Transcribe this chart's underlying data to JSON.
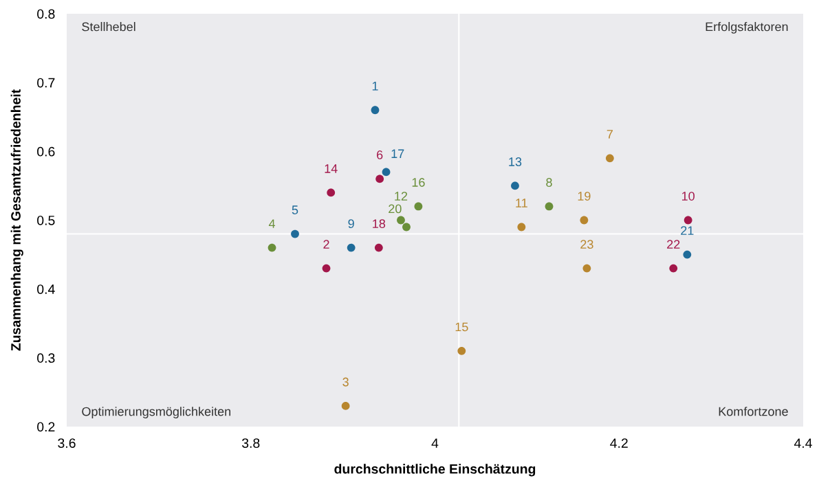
{
  "chart_data": {
    "type": "scatter",
    "xlabel": "durchschnittliche Einschätzung",
    "ylabel": "Zusammenhang mit Gesamtzufriedenheit",
    "xlim": [
      3.6,
      4.4
    ],
    "xticks": [
      3.6,
      3.8,
      4,
      4.2,
      4.4
    ],
    "ylim": [
      0.2,
      0.8
    ],
    "yticks": [
      0.2,
      0.3,
      0.4,
      0.5,
      0.6,
      0.7,
      0.8
    ],
    "grid": false,
    "marker": "circle",
    "series": [
      {
        "color": "#1f6b99",
        "x": [
          3.935,
          3.848,
          3.909,
          4.087,
          3.947,
          4.274
        ],
        "values": [
          0.66,
          0.48,
          0.46,
          0.55,
          0.57,
          0.45
        ]
      },
      {
        "color": "#a3174a",
        "x": [
          3.882,
          3.94,
          4.275,
          3.887,
          3.939,
          4.259
        ],
        "values": [
          0.43,
          0.56,
          0.5,
          0.54,
          0.46,
          0.43
        ]
      },
      {
        "color": "#b8862e",
        "x": [
          3.903,
          4.19,
          4.094,
          4.029,
          4.162,
          4.165
        ],
        "values": [
          0.23,
          0.59,
          0.49,
          0.31,
          0.5,
          0.43
        ]
      },
      {
        "color": "#6a8f3a",
        "x": [
          3.823,
          4.124,
          3.963,
          3.982,
          3.969
        ],
        "values": [
          0.46,
          0.52,
          0.5,
          0.52,
          0.49
        ]
      }
    ],
    "ref_lines": [
      {
        "axis": "x",
        "value": 4.026,
        "color": "#ffffff"
      },
      {
        "axis": "y",
        "value": 0.48,
        "color": "#ffffff"
      }
    ],
    "annotations": [
      "Stellhebel",
      "Erfolgsfaktoren",
      "Optimierungsmöglichkeiten",
      "Komfortzone",
      {
        "text": "1",
        "x": 3.935,
        "y": 0.66
      },
      {
        "text": "2",
        "x": 3.882,
        "y": 0.43
      },
      {
        "text": "3",
        "x": 3.903,
        "y": 0.23
      },
      {
        "text": "4",
        "x": 3.823,
        "y": 0.46
      },
      {
        "text": "5",
        "x": 3.848,
        "y": 0.48
      },
      {
        "text": "6",
        "x": 3.94,
        "y": 0.56
      },
      {
        "text": "7",
        "x": 4.19,
        "y": 0.59
      },
      {
        "text": "8",
        "x": 4.124,
        "y": 0.52
      },
      {
        "text": "9",
        "x": 3.909,
        "y": 0.46
      },
      {
        "text": "10",
        "x": 4.275,
        "y": 0.5
      },
      {
        "text": "11",
        "x": 4.094,
        "y": 0.49
      },
      {
        "text": "12",
        "x": 3.963,
        "y": 0.5
      },
      {
        "text": "13",
        "x": 4.087,
        "y": 0.55
      },
      {
        "text": "14",
        "x": 3.887,
        "y": 0.54
      },
      {
        "text": "15",
        "x": 4.029,
        "y": 0.31
      },
      {
        "text": "16",
        "x": 3.982,
        "y": 0.52
      },
      {
        "text": "17",
        "x": 3.947,
        "y": 0.57
      },
      {
        "text": "18",
        "x": 3.939,
        "y": 0.46
      },
      {
        "text": "19",
        "x": 4.162,
        "y": 0.5
      },
      {
        "text": "20",
        "x": 3.969,
        "y": 0.49
      },
      {
        "text": "21",
        "x": 4.274,
        "y": 0.45
      },
      {
        "text": "22",
        "x": 4.259,
        "y": 0.43
      },
      {
        "text": "23",
        "x": 4.165,
        "y": 0.43
      }
    ]
  }
}
